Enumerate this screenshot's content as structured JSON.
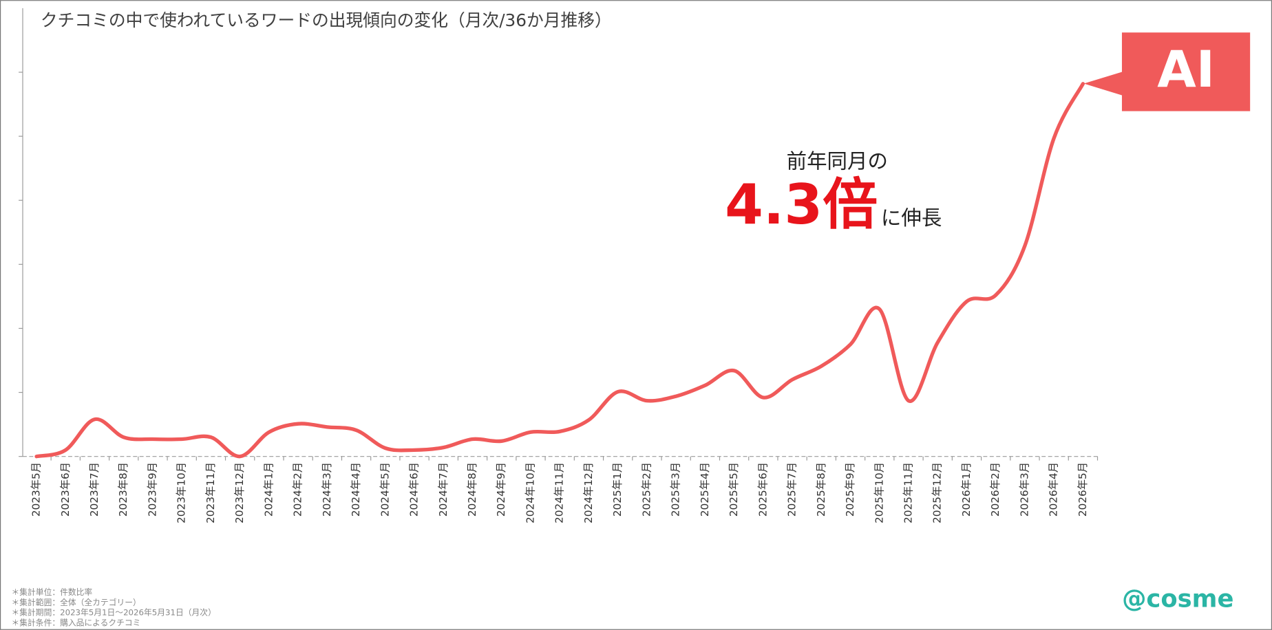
{
  "chart_data": {
    "type": "line",
    "title": "クチコミの中で使われているワードの出現傾向の変化（月次/36か月推移）",
    "categories": [
      "2023年5月",
      "2023年6月",
      "2023年7月",
      "2023年8月",
      "2023年9月",
      "2023年10月",
      "2023年11月",
      "2023年12月",
      "2024年1月",
      "2024年2月",
      "2024年3月",
      "2024年4月",
      "2024年5月",
      "2024年6月",
      "2024年7月",
      "2024年8月",
      "2024年9月",
      "2024年10月",
      "2024年11月",
      "2024年12月",
      "2025年1月",
      "2025年2月",
      "2025年3月",
      "2025年4月",
      "2025年5月",
      "2025年6月",
      "2025年7月",
      "2025年8月",
      "2025年9月",
      "2025年10月",
      "2025年11月",
      "2025年12月",
      "2026年1月",
      "2026年2月",
      "2026年3月",
      "2026年4月",
      "2026年5月"
    ],
    "series": [
      {
        "name": "AI",
        "color": "#f05a5a",
        "values": [
          0,
          0.1,
          0.58,
          0.3,
          0.27,
          0.27,
          0.3,
          0,
          0.38,
          0.51,
          0.46,
          0.41,
          0.13,
          0.1,
          0.14,
          0.27,
          0.24,
          0.38,
          0.39,
          0.57,
          1.01,
          0.87,
          0.94,
          1.11,
          1.34,
          0.92,
          1.2,
          1.41,
          1.75,
          2.3,
          0.87,
          1.78,
          2.42,
          2.52,
          3.29,
          4.97,
          5.82
        ]
      }
    ],
    "ylim": [
      0,
      7
    ],
    "yticks": [
      0,
      1,
      2,
      3,
      4,
      5,
      6
    ],
    "annotation": {
      "line1": "前年同月の",
      "emphasis": "4.3倍",
      "line2": "に伸長"
    },
    "footnotes": [
      "＊集計単位：件数比率",
      "＊集計範囲：全体（全カテゴリー）",
      "＊集計期間：2023年5月1日～2026年5月31日（月次）",
      "＊集計条件：購入品によるクチコミ"
    ],
    "logo": "@cosme"
  }
}
